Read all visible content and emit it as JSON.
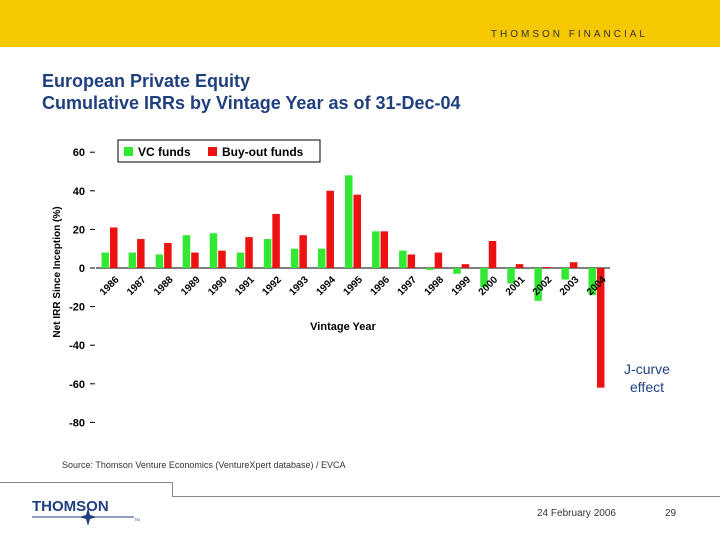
{
  "header": {
    "brand": "THOMSON FINANCIAL",
    "title_line1": "European Private Equity",
    "title_line2": "Cumulative IRRs by Vintage Year as of 31-Dec-04"
  },
  "annotation": {
    "line1": "J-curve",
    "line2": "effect"
  },
  "footer": {
    "source": "Source: Thomson Venture Economics (VentureXpert database) / EVCA",
    "logo_text": "THOMSON",
    "trademark": "TM",
    "date": "24 February 2006",
    "page_number": "29"
  },
  "colors": {
    "topbar": "#f5c800",
    "vc": "#33e833",
    "buyout": "#ee1111",
    "title": "#1f3f7f",
    "logo": "#1f3f7f"
  },
  "chart_data": {
    "type": "bar",
    "xlabel": "Vintage Year",
    "ylabel": "Net IRR Since Inception (%)",
    "ylim": [
      -80,
      60
    ],
    "yticks": [
      60,
      40,
      20,
      0,
      -20,
      -40,
      -60,
      -80
    ],
    "legend_position": "top-left",
    "categories": [
      "1986",
      "1987",
      "1988",
      "1989",
      "1990",
      "1991",
      "1992",
      "1993",
      "1994",
      "1995",
      "1996",
      "1997",
      "1998",
      "1999",
      "2000",
      "2001",
      "2002",
      "2003",
      "2004"
    ],
    "series": [
      {
        "name": "VC funds",
        "color": "#33e833",
        "values": [
          8,
          8,
          7,
          17,
          18,
          8,
          15,
          10,
          10,
          48,
          19,
          9,
          -1,
          -3,
          -10,
          -8,
          -17,
          -6,
          -14
        ]
      },
      {
        "name": "Buy-out funds",
        "color": "#ee1111",
        "values": [
          21,
          15,
          13,
          8,
          9,
          16,
          28,
          17,
          40,
          38,
          19,
          7,
          8,
          2,
          14,
          2,
          0,
          3,
          -62
        ]
      }
    ]
  }
}
